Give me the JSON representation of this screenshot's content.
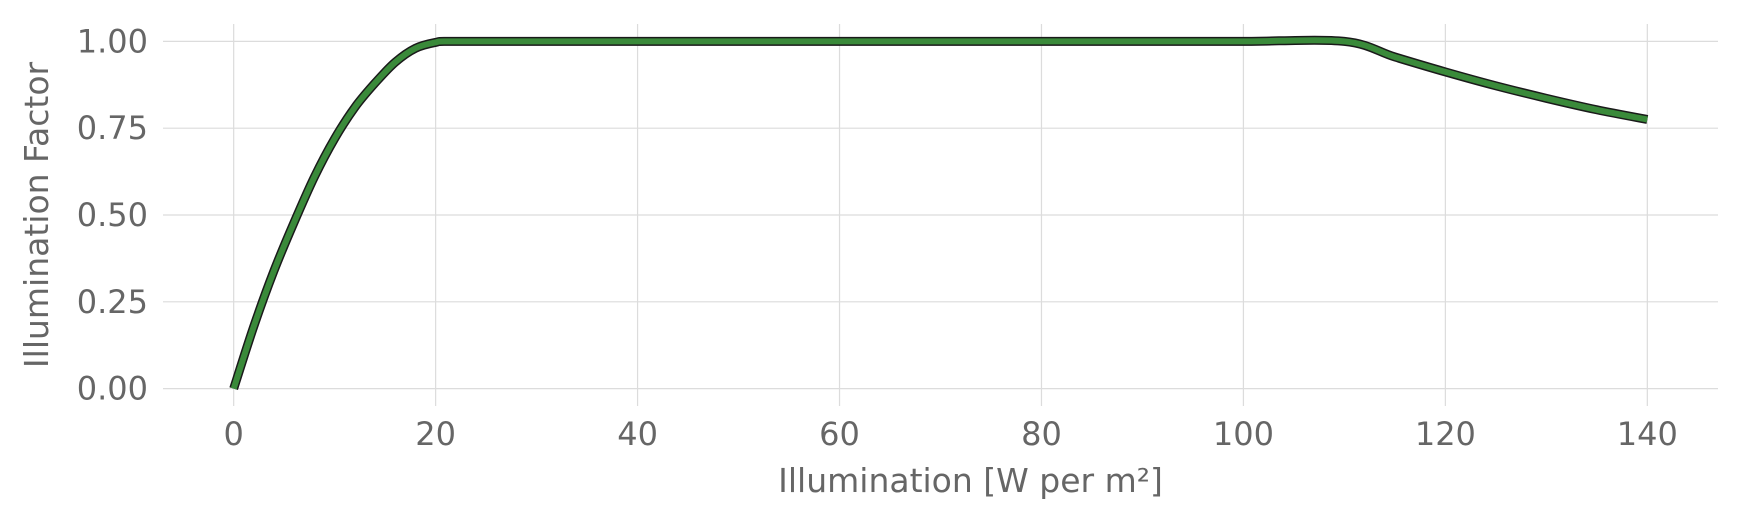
{
  "chart_data": {
    "type": "line",
    "title": "",
    "xlabel": "Illumination [W per m²]",
    "ylabel": "Illumination Factor",
    "xlim": [
      -7,
      147
    ],
    "ylim": [
      -0.05,
      1.05
    ],
    "xticks": [
      0,
      20,
      40,
      60,
      80,
      100,
      120,
      140
    ],
    "yticks": [
      0.0,
      0.25,
      0.5,
      0.75,
      1.0
    ],
    "xtick_labels": [
      "0",
      "20",
      "40",
      "60",
      "80",
      "100",
      "120",
      "140"
    ],
    "ytick_labels": [
      "0.00",
      "0.25",
      "0.50",
      "0.75",
      "1.00"
    ],
    "grid": true,
    "legend": "none",
    "series": [
      {
        "color": "#3a8a3a",
        "edge_color": "#1a1a1a",
        "x": [
          0,
          2,
          4,
          6,
          8,
          10,
          12,
          14,
          16,
          18,
          20,
          21.5,
          30,
          40,
          50,
          60,
          70,
          80,
          90,
          100,
          110,
          115,
          120,
          125,
          130,
          135,
          140
        ],
        "y": [
          0.0,
          0.18,
          0.34,
          0.48,
          0.61,
          0.72,
          0.81,
          0.88,
          0.94,
          0.98,
          0.997,
          1.0,
          1.0,
          1.0,
          1.0,
          1.0,
          1.0,
          1.0,
          1.0,
          1.0,
          1.0,
          0.955,
          0.912,
          0.872,
          0.836,
          0.803,
          0.775
        ]
      }
    ]
  }
}
